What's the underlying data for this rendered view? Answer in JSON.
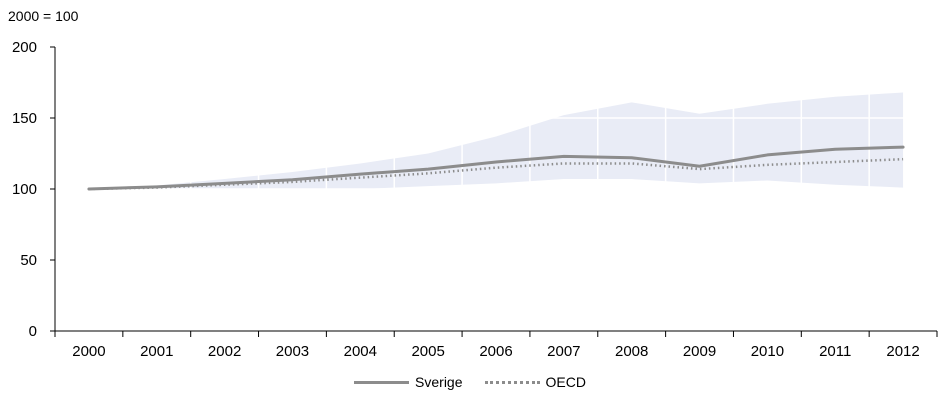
{
  "chart_data": {
    "type": "line",
    "unit_label": "2000 = 100",
    "x": [
      "2000",
      "2001",
      "2002",
      "2003",
      "2004",
      "2005",
      "2006",
      "2007",
      "2008",
      "2009",
      "2010",
      "2011",
      "2012"
    ],
    "ylim": [
      0,
      200
    ],
    "yticks": [
      0,
      50,
      100,
      150,
      200
    ],
    "grid": {
      "x": true,
      "y": true
    },
    "legend_position": "bottom-center",
    "series": [
      {
        "name": "Sverige",
        "style": "solid",
        "color": "#8c8c8c",
        "values": [
          100,
          101.5,
          104,
          106.5,
          110.5,
          114,
          119,
          123,
          122,
          116,
          124,
          128,
          129.5
        ]
      },
      {
        "name": "OECD",
        "style": "dotted",
        "color": "#8c8c8c",
        "values": [
          100,
          101,
          103,
          105,
          108,
          111,
          115,
          118,
          118,
          114,
          117,
          119,
          121
        ]
      }
    ],
    "range_band": {
      "color": "#e9ecf6",
      "upper": [
        100,
        102.5,
        107,
        112,
        118,
        125,
        137,
        152,
        161,
        153,
        160,
        165,
        168
      ],
      "lower": [
        100,
        100,
        100,
        100,
        100,
        102,
        104,
        107,
        107,
        104,
        106,
        103,
        101
      ]
    }
  }
}
